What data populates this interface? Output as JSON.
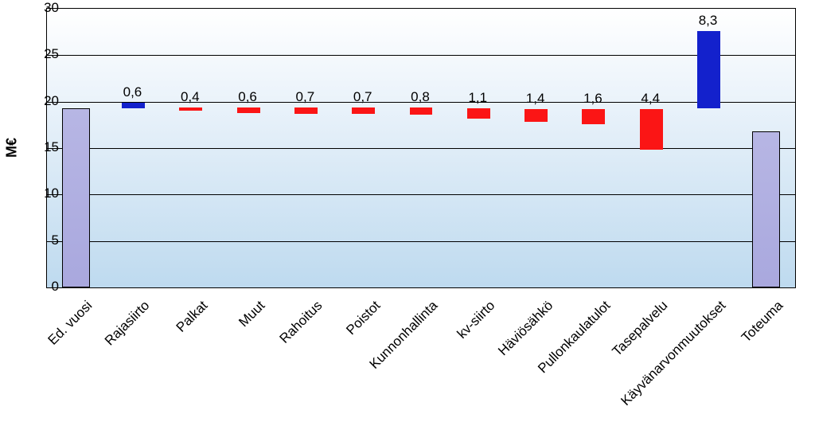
{
  "chart": {
    "type": "waterfall",
    "axis_title": "M€",
    "ylim": [
      0,
      30
    ],
    "ytick_step": 5,
    "yticks": [
      0,
      5,
      10,
      15,
      20,
      25,
      30
    ],
    "categories": [
      "Ed. vuosi",
      "Rajasiirto",
      "Palkat",
      "Muut",
      "Rahoitus",
      "Poistot",
      "Kunnonhallinta",
      "kv-siirto",
      "Häviösähkö",
      "Pullonkaulatulot",
      "Tasepalvelu",
      "Käyvänarvonmuutokset",
      "Toteuma"
    ],
    "bars": [
      {
        "label": "",
        "base": 0.0,
        "top": 19.3,
        "color": "lightblue"
      },
      {
        "label": "0,6",
        "base": 19.3,
        "top": 19.9,
        "color": "blue"
      },
      {
        "label": "0,4",
        "base": 19.0,
        "top": 19.4,
        "color": "red"
      },
      {
        "label": "0,6",
        "base": 18.8,
        "top": 19.4,
        "color": "red"
      },
      {
        "label": "0,7",
        "base": 18.7,
        "top": 19.4,
        "color": "red"
      },
      {
        "label": "0,7",
        "base": 18.7,
        "top": 19.4,
        "color": "red"
      },
      {
        "label": "0,8",
        "base": 18.6,
        "top": 19.4,
        "color": "red"
      },
      {
        "label": "1,1",
        "base": 18.2,
        "top": 19.3,
        "color": "red"
      },
      {
        "label": "1,4",
        "base": 17.8,
        "top": 19.2,
        "color": "red"
      },
      {
        "label": "1,6",
        "base": 17.6,
        "top": 19.2,
        "color": "red"
      },
      {
        "label": "4,4",
        "base": 14.8,
        "top": 19.2,
        "color": "red"
      },
      {
        "label": "8,3",
        "base": 19.3,
        "top": 27.6,
        "color": "blue"
      },
      {
        "label": "",
        "base": 0.0,
        "top": 16.8,
        "color": "lightblue"
      }
    ],
    "styling": {
      "plot_bg_gradient_from": "#ffffff",
      "plot_bg_gradient_to": "#bedaef",
      "gridline_color": "#000000",
      "border_color": "#000000",
      "colors": {
        "lightblue": "#a9a8de",
        "blue": "#1321cc",
        "red": "#fb1515"
      },
      "font_family": "Arial",
      "label_fontsize": 17,
      "tick_fontsize": 17,
      "axis_title_fontsize": 18,
      "bar_width_ratio": 0.4,
      "endpoint_bar_width_ratio": 0.48
    }
  }
}
